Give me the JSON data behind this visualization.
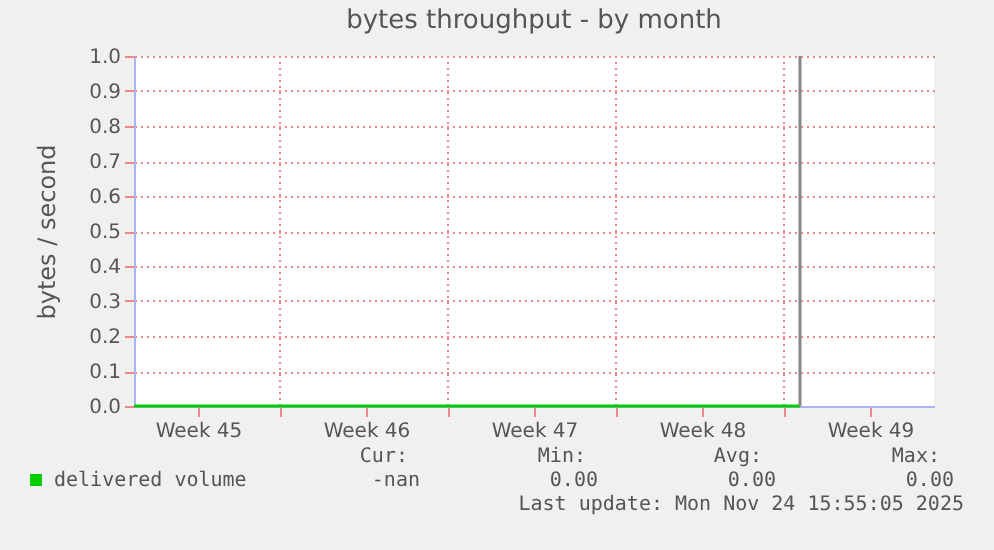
{
  "chart_data": {
    "type": "line",
    "title": "bytes throughput - by month",
    "ylabel": "bytes / second",
    "series": [
      {
        "name": "delivered volume",
        "color": "#00cc00",
        "x": [
          "2025-10-27T22:00",
          "2025-11-24T16:00"
        ],
        "values": [
          0,
          0
        ]
      }
    ],
    "xlim": [
      "2025-10-27T22:00",
      "2025-11-30T06:00"
    ],
    "xticks": [
      {
        "value": "2025-10-30T14:00",
        "label": "Week 45"
      },
      {
        "value": "2025-11-03",
        "label": null
      },
      {
        "value": "2025-11-06T14:00",
        "label": "Week 46"
      },
      {
        "value": "2025-11-10",
        "label": null
      },
      {
        "value": "2025-11-13T14:00",
        "label": "Week 47"
      },
      {
        "value": "2025-11-17",
        "label": null
      },
      {
        "value": "2025-11-20T14:00",
        "label": "Week 48"
      },
      {
        "value": "2025-11-24",
        "label": null
      },
      {
        "value": "2025-11-27T14:00",
        "label": "Week 49"
      }
    ],
    "ylim": [
      0,
      1
    ],
    "yticks": [
      {
        "value": 0,
        "label": "0.0"
      },
      {
        "value": 0.1,
        "label": "0.1"
      },
      {
        "value": 0.2,
        "label": "0.2"
      },
      {
        "value": 0.3,
        "label": "0.3"
      },
      {
        "value": 0.4,
        "label": "0.4"
      },
      {
        "value": 0.5,
        "label": "0.5"
      },
      {
        "value": 0.6,
        "label": "0.6"
      },
      {
        "value": 0.7,
        "label": "0.7"
      },
      {
        "value": 0.8,
        "label": "0.8"
      },
      {
        "value": 0.9,
        "label": "0.9"
      },
      {
        "value": 1,
        "label": "1.0"
      }
    ],
    "ref_lines": [
      {
        "axis": "x",
        "value": "2025-11-24T16:00",
        "color": "#888888"
      }
    ],
    "annotations": [
      "Cur:",
      "Min:",
      "Avg:",
      "Max:",
      "-nan",
      "0.00",
      "0.00",
      "0.00",
      "Last update: Mon Nov 24 15:55:05 2025"
    ],
    "grid": true,
    "legend": "bottom"
  }
}
